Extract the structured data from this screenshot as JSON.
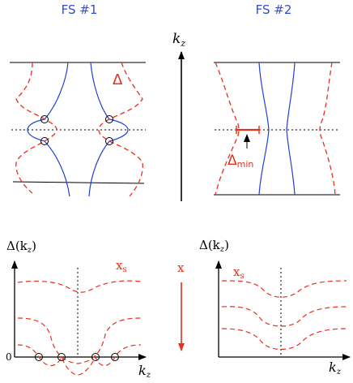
{
  "panels": {
    "fs1": {
      "title": "FS #1",
      "gap_label": "Δ"
    },
    "fs2": {
      "title": "FS #2",
      "gap_label": "Δ",
      "gap_sub": "min"
    }
  },
  "axes": {
    "kz_vertical": {
      "main": "k",
      "sub": "z"
    },
    "left_plot": {
      "ylabel": "Δ(k",
      "ylabel_sub": "z",
      "ylabel_close": ")",
      "zero": "0",
      "xlabel": "k",
      "xlabel_sub": "z",
      "series_label": "x",
      "series_sub": "s"
    },
    "right_plot": {
      "ylabel": "Δ(k",
      "ylabel_sub": "z",
      "ylabel_close": ")",
      "xlabel": "k",
      "xlabel_sub": "z",
      "series_label": "x",
      "series_sub": "s"
    }
  },
  "x_arrow": {
    "label": "x"
  },
  "colors": {
    "blue": "#1f3fd6",
    "red": "#e8301c",
    "black": "#000000",
    "title_blue": "#2c4ee0"
  }
}
